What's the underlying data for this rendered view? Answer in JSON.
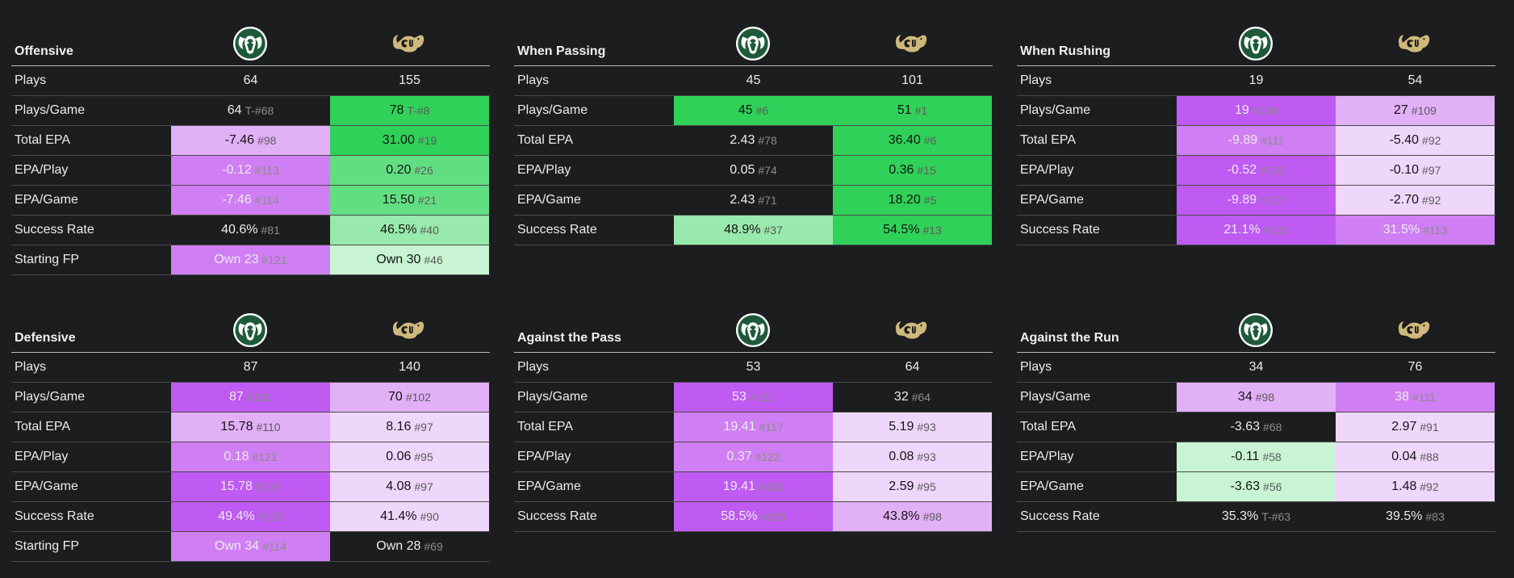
{
  "teams": [
    {
      "name": "Colorado State",
      "logo_icon": "csu-ram-logo-icon",
      "logo_color": "#1e5a3a"
    },
    {
      "name": "Colorado",
      "logo_icon": "cu-buffalo-logo-icon",
      "logo_color": "#cfb87c"
    }
  ],
  "panels": [
    {
      "title": "Offensive",
      "rows": [
        {
          "label": "Plays",
          "cells": [
            {
              "value": "64",
              "rank": "",
              "bg": ""
            },
            {
              "value": "155",
              "rank": "",
              "bg": ""
            }
          ]
        },
        {
          "label": "Plays/Game",
          "cells": [
            {
              "value": "64",
              "rank": "T-#68",
              "bg": ""
            },
            {
              "value": "78",
              "rank": "T-#8",
              "bg": "#30d158"
            }
          ]
        },
        {
          "label": "Total EPA",
          "cells": [
            {
              "value": "-7.46",
              "rank": "#98",
              "bg": "#e2b0f7"
            },
            {
              "value": "31.00",
              "rank": "#19",
              "bg": "#30d158"
            }
          ]
        },
        {
          "label": "EPA/Play",
          "cells": [
            {
              "value": "-0.12",
              "rank": "#113",
              "bg": "#d07ef3"
            },
            {
              "value": "0.20",
              "rank": "#26",
              "bg": "#62de82"
            }
          ]
        },
        {
          "label": "EPA/Game",
          "cells": [
            {
              "value": "-7.46",
              "rank": "#114",
              "bg": "#d07ef3"
            },
            {
              "value": "15.50",
              "rank": "#21",
              "bg": "#62de82"
            }
          ]
        },
        {
          "label": "Success Rate",
          "cells": [
            {
              "value": "40.6%",
              "rank": "#81",
              "bg": ""
            },
            {
              "value": "46.5%",
              "rank": "#40",
              "bg": "#98e9ab"
            }
          ]
        },
        {
          "label": "Starting FP",
          "cells": [
            {
              "value": "Own 23",
              "rank": "#121",
              "bg": "#d07ef3"
            },
            {
              "value": "Own 30",
              "rank": "#46",
              "bg": "#c8f4d3"
            }
          ]
        }
      ]
    },
    {
      "title": "When Passing",
      "rows": [
        {
          "label": "Plays",
          "cells": [
            {
              "value": "45",
              "rank": "",
              "bg": ""
            },
            {
              "value": "101",
              "rank": "",
              "bg": ""
            }
          ]
        },
        {
          "label": "Plays/Game",
          "cells": [
            {
              "value": "45",
              "rank": "#6",
              "bg": "#30d158"
            },
            {
              "value": "51",
              "rank": "#1",
              "bg": "#30d158"
            }
          ]
        },
        {
          "label": "Total EPA",
          "cells": [
            {
              "value": "2.43",
              "rank": "#78",
              "bg": ""
            },
            {
              "value": "36.40",
              "rank": "#6",
              "bg": "#30d158"
            }
          ]
        },
        {
          "label": "EPA/Play",
          "cells": [
            {
              "value": "0.05",
              "rank": "#74",
              "bg": ""
            },
            {
              "value": "0.36",
              "rank": "#15",
              "bg": "#30d158"
            }
          ]
        },
        {
          "label": "EPA/Game",
          "cells": [
            {
              "value": "2.43",
              "rank": "#71",
              "bg": ""
            },
            {
              "value": "18.20",
              "rank": "#5",
              "bg": "#30d158"
            }
          ]
        },
        {
          "label": "Success Rate",
          "cells": [
            {
              "value": "48.9%",
              "rank": "#37",
              "bg": "#98e9ab"
            },
            {
              "value": "54.5%",
              "rank": "#13",
              "bg": "#30d158"
            }
          ]
        }
      ]
    },
    {
      "title": "When Rushing",
      "rows": [
        {
          "label": "Plays",
          "cells": [
            {
              "value": "19",
              "rank": "",
              "bg": ""
            },
            {
              "value": "54",
              "rank": "",
              "bg": ""
            }
          ]
        },
        {
          "label": "Plays/Game",
          "cells": [
            {
              "value": "19",
              "rank": "#130",
              "bg": "#bf5af2"
            },
            {
              "value": "27",
              "rank": "#109",
              "bg": "#e2b0f7"
            }
          ]
        },
        {
          "label": "Total EPA",
          "cells": [
            {
              "value": "-9.89",
              "rank": "#111",
              "bg": "#d07ef3"
            },
            {
              "value": "-5.40",
              "rank": "#92",
              "bg": "#efd6fb"
            }
          ]
        },
        {
          "label": "EPA/Play",
          "cells": [
            {
              "value": "-0.52",
              "rank": "#131",
              "bg": "#bf5af2"
            },
            {
              "value": "-0.10",
              "rank": "#97",
              "bg": "#efd6fb"
            }
          ]
        },
        {
          "label": "EPA/Game",
          "cells": [
            {
              "value": "-9.89",
              "rank": "#127",
              "bg": "#bf5af2"
            },
            {
              "value": "-2.70",
              "rank": "#92",
              "bg": "#efd6fb"
            }
          ]
        },
        {
          "label": "Success Rate",
          "cells": [
            {
              "value": "21.1%",
              "rank": "#130",
              "bg": "#bf5af2"
            },
            {
              "value": "31.5%",
              "rank": "#113",
              "bg": "#d07ef3"
            }
          ]
        }
      ]
    },
    {
      "title": "Defensive",
      "rows": [
        {
          "label": "Plays",
          "cells": [
            {
              "value": "87",
              "rank": "",
              "bg": ""
            },
            {
              "value": "140",
              "rank": "",
              "bg": ""
            }
          ]
        },
        {
          "label": "Plays/Game",
          "cells": [
            {
              "value": "87",
              "rank": "#131",
              "bg": "#bf5af2"
            },
            {
              "value": "70",
              "rank": "#102",
              "bg": "#e2b0f7"
            }
          ]
        },
        {
          "label": "Total EPA",
          "cells": [
            {
              "value": "15.78",
              "rank": "#110",
              "bg": "#e2b0f7"
            },
            {
              "value": "8.16",
              "rank": "#97",
              "bg": "#efd6fb"
            }
          ]
        },
        {
          "label": "EPA/Play",
          "cells": [
            {
              "value": "0.18",
              "rank": "#121",
              "bg": "#d07ef3"
            },
            {
              "value": "0.06",
              "rank": "#95",
              "bg": "#efd6fb"
            }
          ]
        },
        {
          "label": "EPA/Game",
          "cells": [
            {
              "value": "15.78",
              "rank": "#128",
              "bg": "#bf5af2"
            },
            {
              "value": "4.08",
              "rank": "#97",
              "bg": "#efd6fb"
            }
          ]
        },
        {
          "label": "Success Rate",
          "cells": [
            {
              "value": "49.4%",
              "rank": "#125",
              "bg": "#bf5af2"
            },
            {
              "value": "41.4%",
              "rank": "#90",
              "bg": "#efd6fb"
            }
          ]
        },
        {
          "label": "Starting FP",
          "cells": [
            {
              "value": "Own 34",
              "rank": "#114",
              "bg": "#d07ef3"
            },
            {
              "value": "Own 28",
              "rank": "#69",
              "bg": ""
            }
          ]
        }
      ]
    },
    {
      "title": "Against the Pass",
      "rows": [
        {
          "label": "Plays",
          "cells": [
            {
              "value": "53",
              "rank": "",
              "bg": ""
            },
            {
              "value": "64",
              "rank": "",
              "bg": ""
            }
          ]
        },
        {
          "label": "Plays/Game",
          "cells": [
            {
              "value": "53",
              "rank": "#131",
              "bg": "#bf5af2"
            },
            {
              "value": "32",
              "rank": "#64",
              "bg": ""
            }
          ]
        },
        {
          "label": "Total EPA",
          "cells": [
            {
              "value": "19.41",
              "rank": "#117",
              "bg": "#d07ef3"
            },
            {
              "value": "5.19",
              "rank": "#93",
              "bg": "#efd6fb"
            }
          ]
        },
        {
          "label": "EPA/Play",
          "cells": [
            {
              "value": "0.37",
              "rank": "#122",
              "bg": "#d07ef3"
            },
            {
              "value": "0.08",
              "rank": "#93",
              "bg": "#efd6fb"
            }
          ]
        },
        {
          "label": "EPA/Game",
          "cells": [
            {
              "value": "19.41",
              "rank": "#131",
              "bg": "#bf5af2"
            },
            {
              "value": "2.59",
              "rank": "#95",
              "bg": "#efd6fb"
            }
          ]
        },
        {
          "label": "Success Rate",
          "cells": [
            {
              "value": "58.5%",
              "rank": "#129",
              "bg": "#bf5af2"
            },
            {
              "value": "43.8%",
              "rank": "#98",
              "bg": "#e2b0f7"
            }
          ]
        }
      ]
    },
    {
      "title": "Against the Run",
      "rows": [
        {
          "label": "Plays",
          "cells": [
            {
              "value": "34",
              "rank": "",
              "bg": ""
            },
            {
              "value": "76",
              "rank": "",
              "bg": ""
            }
          ]
        },
        {
          "label": "Plays/Game",
          "cells": [
            {
              "value": "34",
              "rank": "#98",
              "bg": "#e2b0f7"
            },
            {
              "value": "38",
              "rank": "#111",
              "bg": "#d07ef3"
            }
          ]
        },
        {
          "label": "Total EPA",
          "cells": [
            {
              "value": "-3.63",
              "rank": "#68",
              "bg": ""
            },
            {
              "value": "2.97",
              "rank": "#91",
              "bg": "#efd6fb"
            }
          ]
        },
        {
          "label": "EPA/Play",
          "cells": [
            {
              "value": "-0.11",
              "rank": "#58",
              "bg": "#c8f4d3"
            },
            {
              "value": "0.04",
              "rank": "#88",
              "bg": "#efd6fb"
            }
          ]
        },
        {
          "label": "EPA/Game",
          "cells": [
            {
              "value": "-3.63",
              "rank": "#56",
              "bg": "#c8f4d3"
            },
            {
              "value": "1.48",
              "rank": "#92",
              "bg": "#efd6fb"
            }
          ]
        },
        {
          "label": "Success Rate",
          "cells": [
            {
              "value": "35.3%",
              "rank": "T-#63",
              "bg": ""
            },
            {
              "value": "39.5%",
              "rank": "#83",
              "bg": ""
            }
          ]
        }
      ]
    }
  ]
}
